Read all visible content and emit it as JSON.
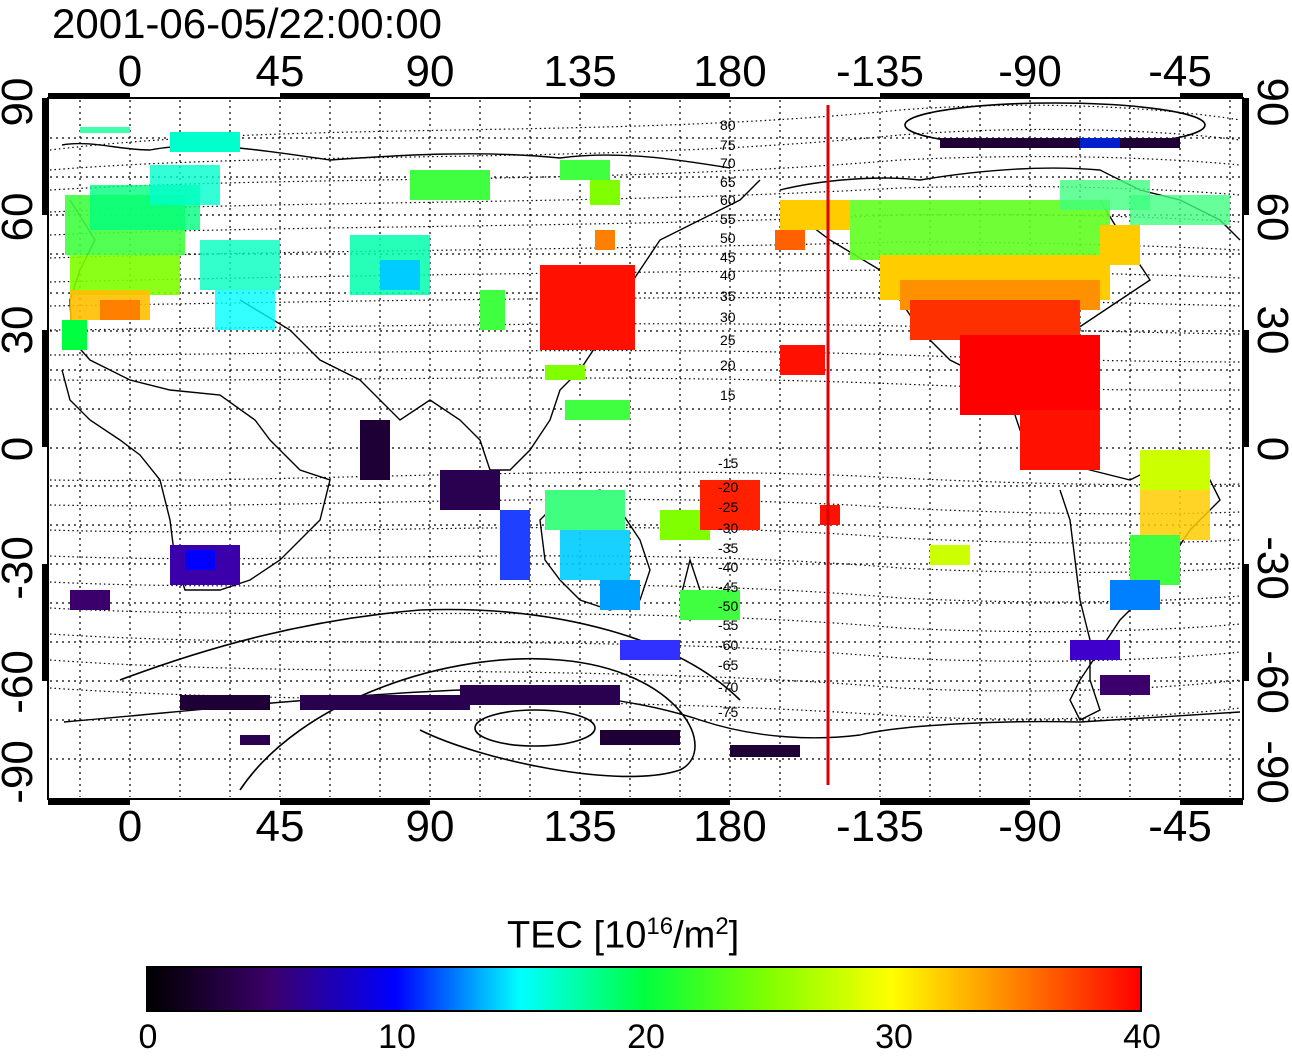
{
  "timestamp": "2001-06-05/22:00:00",
  "map": {
    "lon_ticks": [
      "0",
      "45",
      "90",
      "135",
      "180",
      "-135",
      "-90",
      "-45"
    ],
    "lat_ticks": [
      "90",
      "60",
      "30",
      "0",
      "-30",
      "-60",
      "-90"
    ],
    "contour_labels_north": [
      "80",
      "75",
      "70",
      "65",
      "60",
      "55",
      "50",
      "45",
      "40",
      "35",
      "30",
      "25",
      "20",
      "15"
    ],
    "contour_labels_south": [
      "-15",
      "-20",
      "-25",
      "-30",
      "-35",
      "-40",
      "-45",
      "-50",
      "-55",
      "-60",
      "-65",
      "-70",
      "-75"
    ],
    "terminator_color": "#dd0000"
  },
  "colorbar": {
    "title_prefix": "TEC  [10",
    "title_sup1": "16",
    "title_mid": "/m",
    "title_sup2": "2",
    "title_suffix": "]",
    "ticks": [
      "0",
      "10",
      "20",
      "30",
      "40"
    ],
    "colors": [
      "#000000",
      "#3b006b",
      "#0000ff",
      "#00ffff",
      "#00ff40",
      "#80ff00",
      "#ffff00",
      "#ff8000",
      "#ff0000"
    ]
  }
}
